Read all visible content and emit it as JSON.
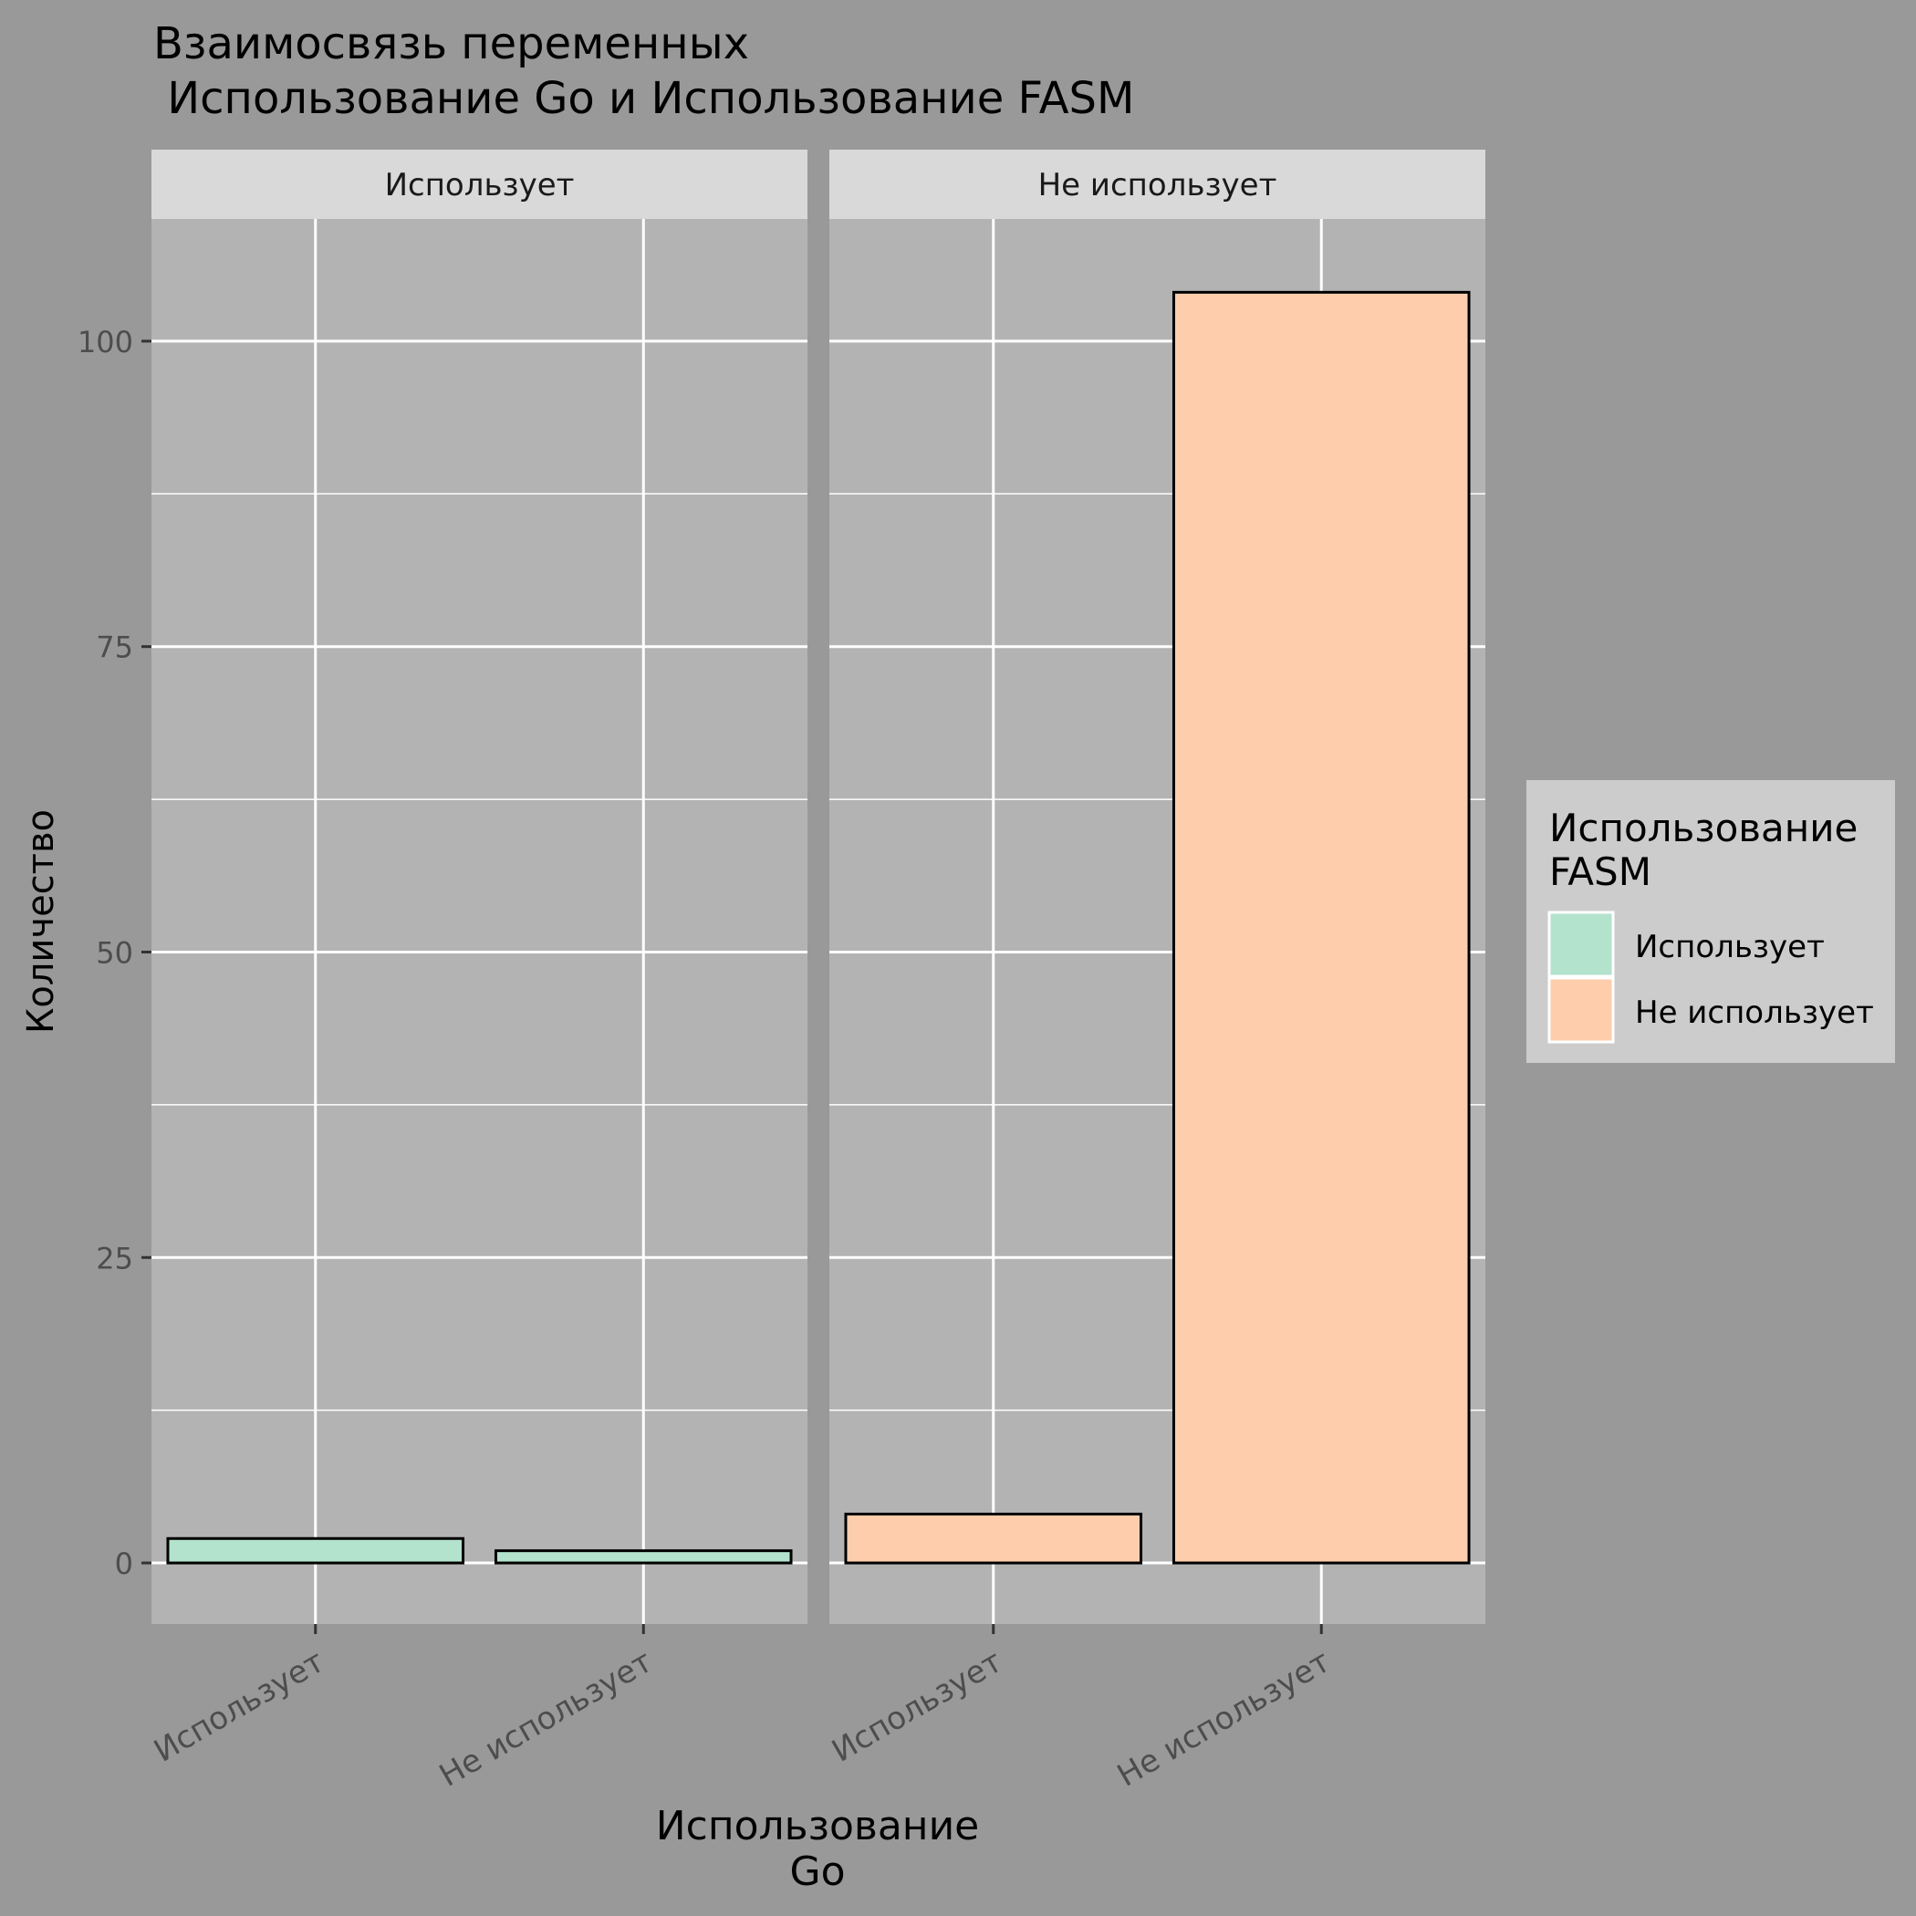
{
  "chart_data": {
    "type": "bar",
    "title_line1": "Взаимосвязь переменных",
    "title_line2": " Использование Go и Использование FASM",
    "xlabel_line1": "Использование",
    "xlabel_line2": "Go",
    "ylabel": "Количество",
    "ylim": [
      -5,
      110
    ],
    "y_ticks": [
      0,
      25,
      50,
      75,
      100
    ],
    "categories": [
      "Использует",
      "Не использует"
    ],
    "facets": [
      {
        "label": "Использует",
        "values": [
          2,
          1
        ]
      },
      {
        "label": "Не использует",
        "values": [
          4,
          104
        ]
      }
    ],
    "legend": {
      "title_line1": "Использование",
      "title_line2": "FASM",
      "placement": "right",
      "entries": [
        {
          "label": "Использует",
          "color": "#b3e2cd"
        },
        {
          "label": "Не использует",
          "color": "#fdcdac"
        }
      ]
    },
    "grid": true
  },
  "colors": {
    "background": "#999999",
    "panel": "#b3b3b3",
    "strip": "#d9d9d9",
    "legend_bg": "#cccccc",
    "gridline": "#ffffff",
    "bar_outline": "#000000"
  }
}
